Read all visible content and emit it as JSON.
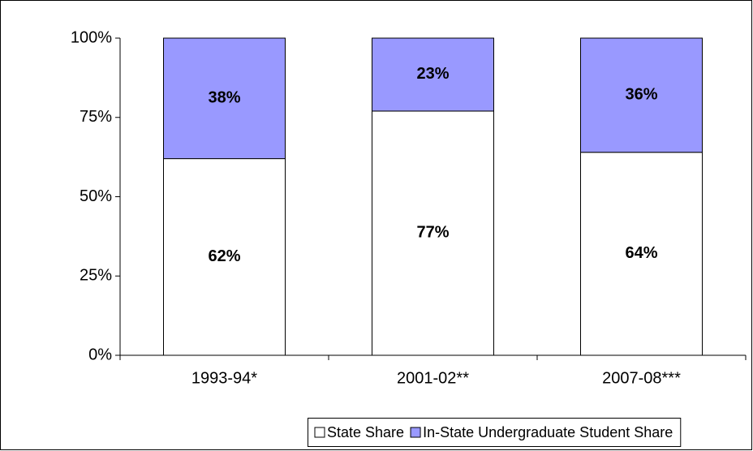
{
  "chart_data": {
    "type": "stacked_bar",
    "categories": [
      "1993-94*",
      "2001-02**",
      "2007-08***"
    ],
    "series": [
      {
        "name": "State Share",
        "color": "#ffffff",
        "values": [
          62,
          77,
          64
        ],
        "value_labels": [
          "62%",
          "77%",
          "64%"
        ]
      },
      {
        "name": "In-State Undergraduate Student Share",
        "color": "#9999ff",
        "values": [
          38,
          23,
          36
        ],
        "value_labels": [
          "38%",
          "23%",
          "36%"
        ]
      }
    ],
    "ylim": [
      0,
      100
    ],
    "yticks": [
      {
        "value": 0,
        "label": "0%"
      },
      {
        "value": 25,
        "label": "25%"
      },
      {
        "value": 50,
        "label": "50%"
      },
      {
        "value": 75,
        "label": "75%"
      },
      {
        "value": 100,
        "label": "100%"
      }
    ],
    "legend": "bottom"
  }
}
